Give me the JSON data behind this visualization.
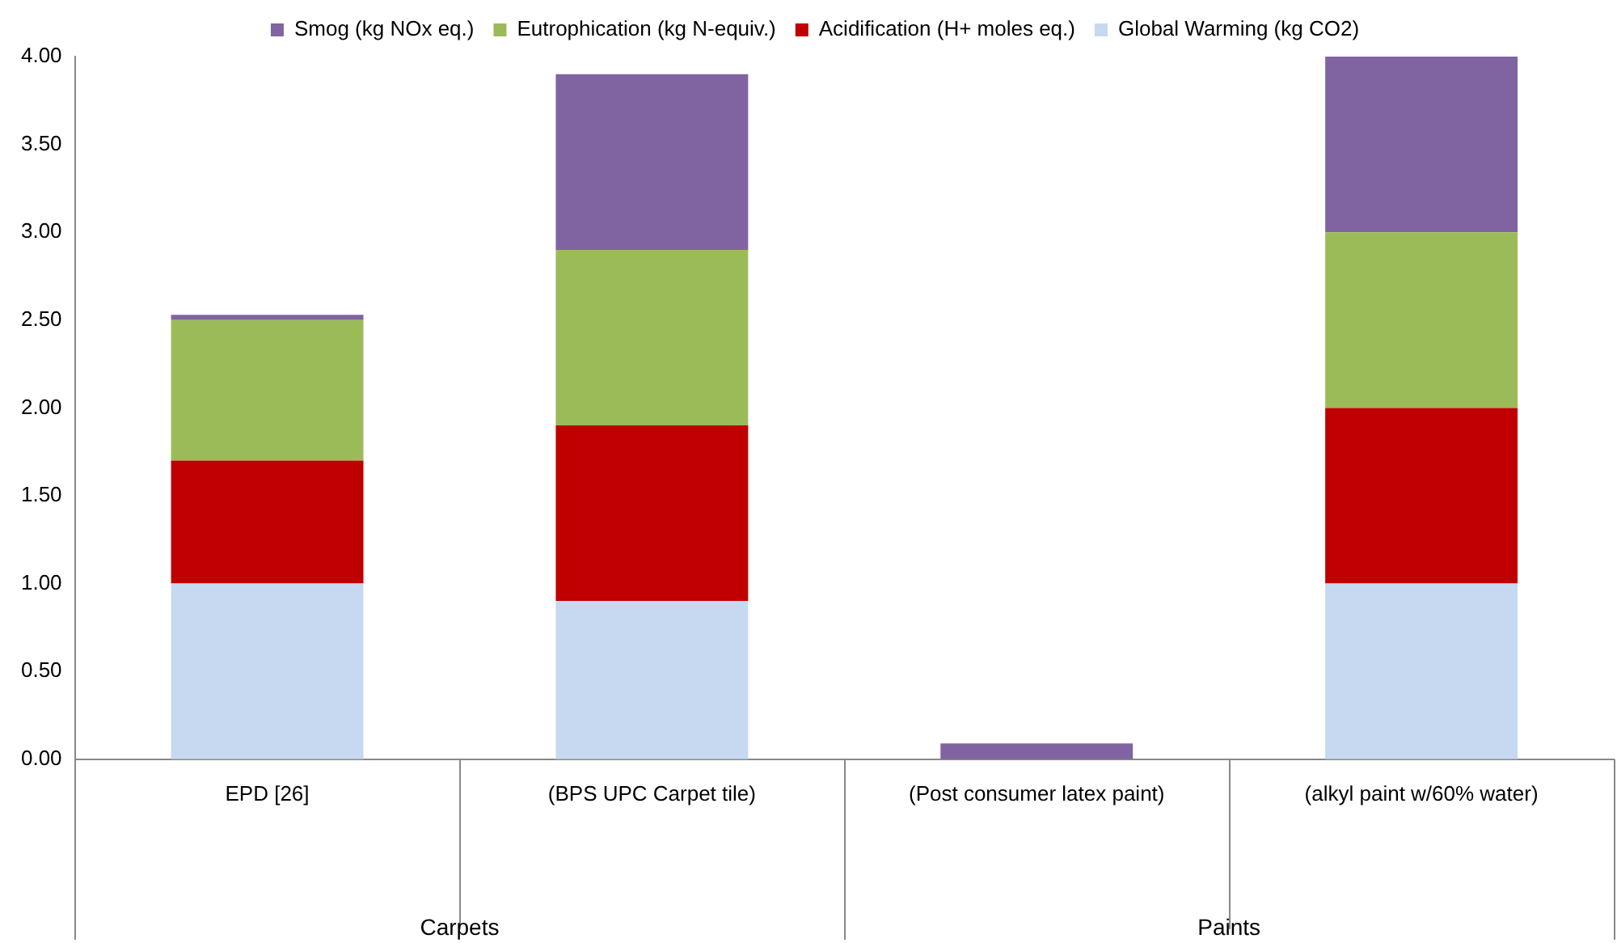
{
  "chart_data": {
    "type": "bar",
    "stacked": true,
    "legend": "top",
    "grid": false,
    "categories": [
      "EPD [26]",
      "(BPS UPC Carpet tile)",
      "(Post consumer latex paint)",
      "(alkyl paint w/60% water)"
    ],
    "series": [
      {
        "name": "Global Warming (kg CO2)",
        "color": "#c6d9f0",
        "values": [
          1.0,
          0.9,
          0,
          1.0
        ]
      },
      {
        "name": "Acidification (H+ moles eq.)",
        "color": "#c00000",
        "values": [
          0.7,
          1.0,
          0,
          1.0
        ]
      },
      {
        "name": "Eutrophication (kg N-equiv.)",
        "color": "#9bbb59",
        "values": [
          0.8,
          1.0,
          0,
          1.0
        ]
      },
      {
        "name": "Smog (kg NOx eq.)",
        "color": "#8064a2",
        "values": [
          0.03,
          1.0,
          0.09,
          1.0
        ]
      }
    ],
    "ylim": [
      0,
      4
    ],
    "yticks": [
      {
        "value": 0,
        "label": "0.00"
      },
      {
        "value": 0.5,
        "label": "0.50"
      },
      {
        "value": 1,
        "label": "1.00"
      },
      {
        "value": 1.5,
        "label": "1.50"
      },
      {
        "value": 2,
        "label": "2.00"
      },
      {
        "value": 2.5,
        "label": "2.50"
      },
      {
        "value": 3,
        "label": "3.00"
      },
      {
        "value": 3.5,
        "label": "3.50"
      },
      {
        "value": 4,
        "label": "4.00"
      }
    ],
    "annotations": [
      "Carpets",
      "Paints"
    ]
  }
}
